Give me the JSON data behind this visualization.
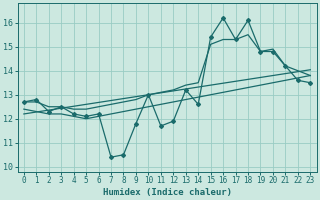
{
  "title": "",
  "xlabel": "Humidex (Indice chaleur)",
  "bg_color": "#cce8e0",
  "grid_color": "#99ccc4",
  "line_color": "#1a6b6b",
  "xlim": [
    -0.5,
    23.5
  ],
  "ylim": [
    9.8,
    16.8
  ],
  "yticks": [
    10,
    11,
    12,
    13,
    14,
    15,
    16
  ],
  "xticks": [
    0,
    1,
    2,
    3,
    4,
    5,
    6,
    7,
    8,
    9,
    10,
    11,
    12,
    13,
    14,
    15,
    16,
    17,
    18,
    19,
    20,
    21,
    22,
    23
  ],
  "main_y": [
    12.7,
    12.8,
    12.3,
    12.5,
    12.2,
    12.1,
    12.2,
    10.4,
    10.5,
    11.8,
    13.0,
    11.7,
    11.9,
    13.2,
    12.6,
    15.4,
    16.2,
    15.3,
    16.1,
    14.8,
    14.8,
    14.2,
    13.6,
    13.5
  ],
  "upper_y": [
    12.7,
    12.7,
    12.5,
    12.5,
    12.4,
    12.4,
    12.5,
    12.6,
    12.7,
    12.8,
    13.0,
    13.1,
    13.2,
    13.4,
    13.5,
    15.1,
    15.3,
    15.3,
    15.5,
    14.8,
    14.9,
    14.2,
    14.0,
    13.8
  ],
  "lower_y": [
    12.4,
    12.3,
    12.2,
    12.2,
    12.1,
    12.0,
    12.1,
    12.2,
    12.3,
    12.4,
    12.5,
    12.6,
    12.7,
    12.8,
    12.9,
    13.0,
    13.1,
    13.2,
    13.3,
    13.4,
    13.5,
    13.6,
    13.7,
    13.8
  ],
  "trend_y": [
    12.2,
    12.28,
    12.36,
    12.44,
    12.52,
    12.6,
    12.68,
    12.76,
    12.84,
    12.92,
    13.0,
    13.08,
    13.16,
    13.24,
    13.32,
    13.4,
    13.48,
    13.56,
    13.64,
    13.72,
    13.8,
    13.88,
    13.96,
    14.04
  ]
}
